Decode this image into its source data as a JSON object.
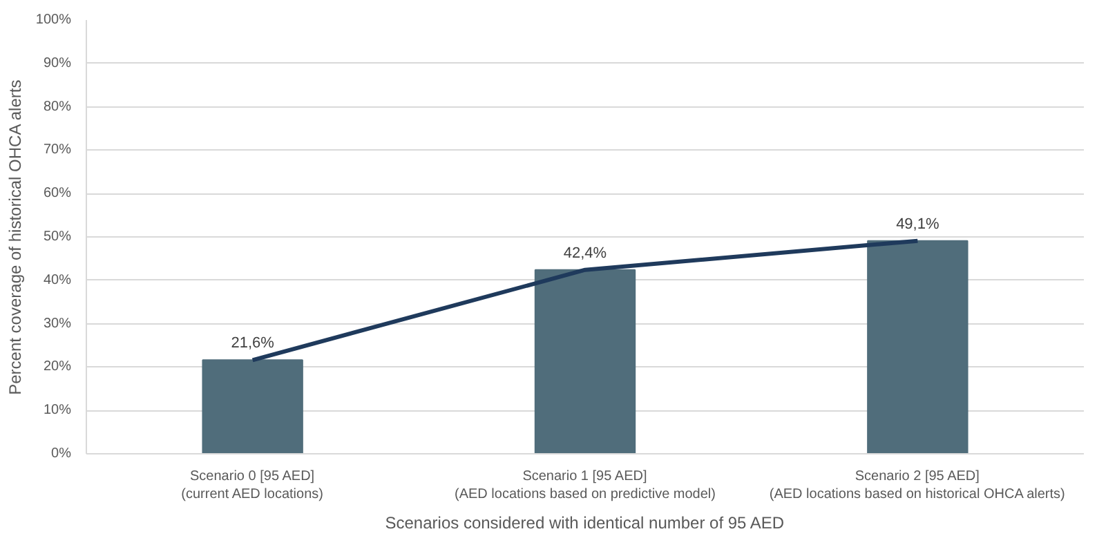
{
  "chart_data": {
    "type": "bar",
    "xlabel": "Scenarios considered with identical number of 95 AED",
    "ylabel": "Percent coverage of historical OHCA alerts",
    "categories": [
      "Scenario 0 [95 AED]\n(current AED locations)",
      "Scenario 1 [95 AED]\n(AED locations based on predictive model)",
      "Scenario 2 [95 AED]\n(AED locations based on historical OHCA alerts)"
    ],
    "series": [
      {
        "color": "#506d7b",
        "values": [
          21.6,
          42.4,
          49.1
        ],
        "value_labels": [
          "21,6%",
          "42,4%",
          "49,1%"
        ]
      },
      {
        "type": "line",
        "color": "#1f3a5c",
        "values": [
          21.6,
          42.4,
          49.1
        ]
      }
    ],
    "ylim": [
      0,
      100
    ],
    "yticks": [
      {
        "value": 0,
        "label": "0%"
      },
      {
        "value": 10,
        "label": "10%"
      },
      {
        "value": 20,
        "label": "20%"
      },
      {
        "value": 30,
        "label": "30%"
      },
      {
        "value": 40,
        "label": "40%"
      },
      {
        "value": 50,
        "label": "50%"
      },
      {
        "value": 60,
        "label": "60%"
      },
      {
        "value": 70,
        "label": "70%"
      },
      {
        "value": 80,
        "label": "80%"
      },
      {
        "value": 90,
        "label": "90%"
      },
      {
        "value": 100,
        "label": "100%"
      }
    ],
    "grid": "y",
    "marker": "none",
    "line_style": "solid"
  }
}
